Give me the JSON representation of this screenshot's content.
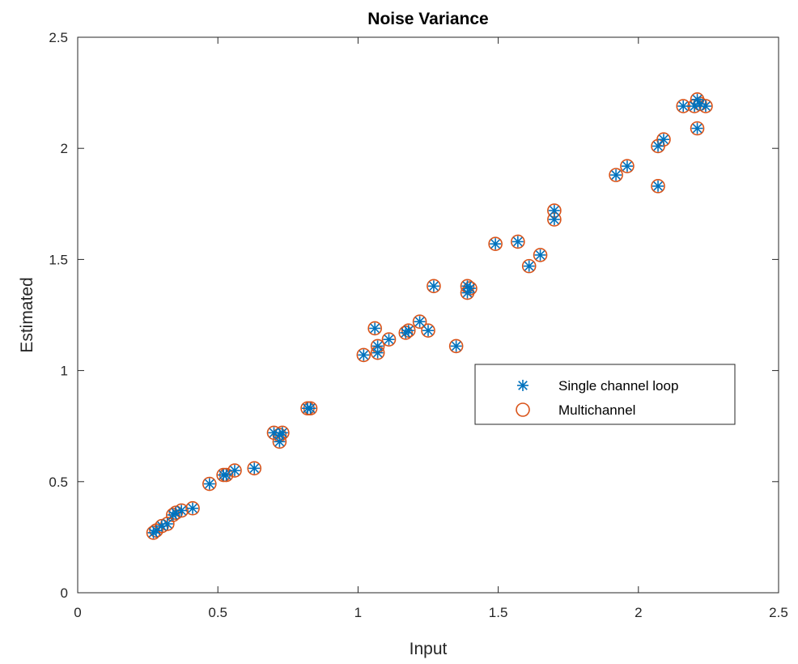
{
  "chart_data": {
    "type": "scatter",
    "title": "Noise Variance",
    "xlabel": "Input",
    "ylabel": "Estimated",
    "xlim": [
      0,
      2.5
    ],
    "ylim": [
      0,
      2.5
    ],
    "xticks": [
      0,
      0.5,
      1,
      1.5,
      2,
      2.5
    ],
    "yticks": [
      0,
      0.5,
      1,
      1.5,
      2,
      2.5
    ],
    "xtick_labels": [
      "0",
      "0.5",
      "1",
      "1.5",
      "2",
      "2.5"
    ],
    "ytick_labels": [
      "0",
      "0.5",
      "1",
      "1.5",
      "2",
      "2.5"
    ],
    "grid": false,
    "legend_position": "center-right",
    "x": [
      0.27,
      0.28,
      0.3,
      0.32,
      0.34,
      0.35,
      0.37,
      0.41,
      0.47,
      0.52,
      0.53,
      0.56,
      0.63,
      0.7,
      0.72,
      0.73,
      0.72,
      0.82,
      0.83,
      1.02,
      1.06,
      1.07,
      1.07,
      1.11,
      1.17,
      1.18,
      1.22,
      1.25,
      1.27,
      1.35,
      1.39,
      1.4,
      1.39,
      1.49,
      1.57,
      1.61,
      1.65,
      1.7,
      1.7,
      1.92,
      1.96,
      2.07,
      2.07,
      2.09,
      2.16,
      2.2,
      2.21,
      2.22,
      2.24,
      2.21
    ],
    "series": [
      {
        "name": "Single channel loop",
        "marker": "asterisk",
        "color": "#0072BD",
        "values": [
          0.27,
          0.28,
          0.3,
          0.31,
          0.35,
          0.36,
          0.37,
          0.38,
          0.49,
          0.53,
          0.53,
          0.55,
          0.56,
          0.72,
          0.71,
          0.72,
          0.68,
          0.83,
          0.83,
          1.07,
          1.19,
          1.11,
          1.08,
          1.14,
          1.17,
          1.18,
          1.22,
          1.18,
          1.38,
          1.11,
          1.35,
          1.37,
          1.38,
          1.57,
          1.58,
          1.47,
          1.52,
          1.68,
          1.72,
          1.88,
          1.92,
          2.01,
          1.83,
          2.04,
          2.19,
          2.19,
          2.22,
          2.2,
          2.19,
          2.09
        ]
      },
      {
        "name": "Multichannel",
        "marker": "circle",
        "color": "#D95319",
        "values": [
          0.27,
          0.28,
          0.3,
          0.31,
          0.35,
          0.36,
          0.37,
          0.38,
          0.49,
          0.53,
          0.53,
          0.55,
          0.56,
          0.72,
          0.71,
          0.72,
          0.68,
          0.83,
          0.83,
          1.07,
          1.19,
          1.11,
          1.08,
          1.14,
          1.17,
          1.18,
          1.22,
          1.18,
          1.38,
          1.11,
          1.35,
          1.37,
          1.38,
          1.57,
          1.58,
          1.47,
          1.52,
          1.68,
          1.72,
          1.88,
          1.92,
          2.01,
          1.83,
          2.04,
          2.19,
          2.19,
          2.22,
          2.2,
          2.19,
          2.09
        ]
      }
    ]
  }
}
